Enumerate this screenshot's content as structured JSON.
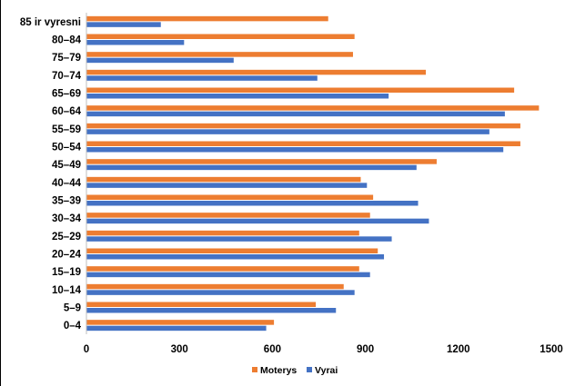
{
  "chart_data": {
    "type": "bar",
    "orientation": "horizontal",
    "categories": [
      "0–4",
      "5–9",
      "10–14",
      "15–19",
      "20–24",
      "25–29",
      "30–34",
      "35–39",
      "40–44",
      "45–49",
      "50–54",
      "55–59",
      "60–64",
      "65–69",
      "70–74",
      "75–79",
      "80–84",
      "85 ir vyresni"
    ],
    "series": [
      {
        "name": "Moterys",
        "color": "#ED7D31",
        "values": [
          605,
          740,
          830,
          880,
          940,
          880,
          915,
          925,
          885,
          1130,
          1400,
          1400,
          1460,
          1380,
          1095,
          860,
          865,
          780
        ]
      },
      {
        "name": "Vyrai",
        "color": "#4472C4",
        "values": [
          580,
          805,
          865,
          915,
          960,
          985,
          1105,
          1070,
          905,
          1065,
          1345,
          1300,
          1350,
          975,
          745,
          475,
          315,
          240
        ]
      }
    ],
    "x_ticks": [
      "0",
      "300",
      "600",
      "900",
      "1200",
      "1500"
    ],
    "xlim": [
      0,
      1500
    ],
    "grid": false,
    "legend_position": "bottom"
  }
}
